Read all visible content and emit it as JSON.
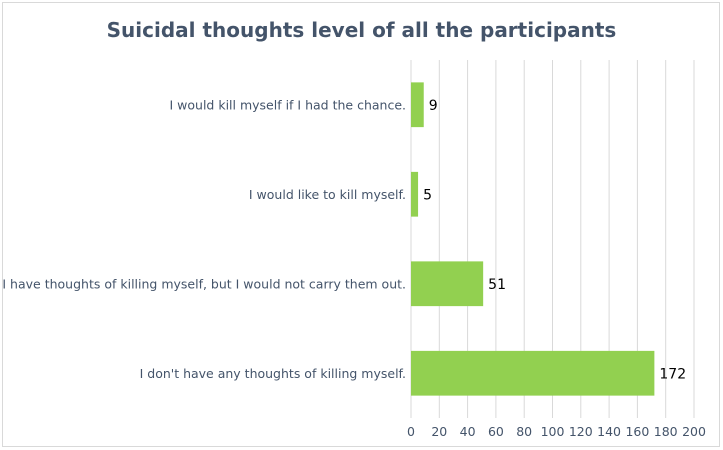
{
  "chart_data": {
    "type": "bar",
    "orientation": "horizontal",
    "title": "Suicidal thoughts level of all the participants",
    "categories": [
      "I would kill myself if I had the chance.",
      "I would like to kill myself.",
      "I have thoughts of killing myself, but I would not carry them out.",
      "I don't have any thoughts of killing myself."
    ],
    "values": [
      9,
      5,
      51,
      172
    ],
    "xlim": [
      0,
      200
    ],
    "xticks": [
      0,
      20,
      40,
      60,
      80,
      100,
      120,
      140,
      160,
      180,
      200
    ],
    "grid": true,
    "legend": "none",
    "bar_color": "#92d050"
  }
}
